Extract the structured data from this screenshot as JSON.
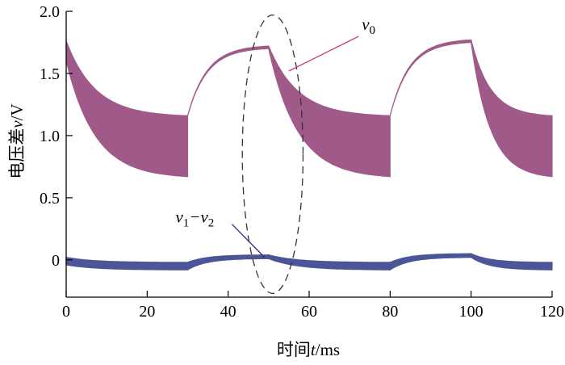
{
  "chart_data": {
    "type": "line",
    "xlabel_parts": [
      "时间",
      "t",
      "/ms"
    ],
    "ylabel_parts": [
      "电压差",
      "v",
      "/V"
    ],
    "xlim": [
      0,
      120
    ],
    "ylim": [
      -0.3,
      2.0
    ],
    "xticks": [
      0,
      20,
      40,
      60,
      80,
      100,
      120
    ],
    "xtick_labels": [
      "0",
      "20",
      "40",
      "60",
      "80",
      "100",
      "120"
    ],
    "yticks": [
      0,
      0.5,
      1.0,
      1.5,
      2.0
    ],
    "ytick_labels": [
      "0",
      "0.5",
      "1.0",
      "1.5",
      "2.0"
    ],
    "grid": false,
    "series": [
      {
        "name": "v0",
        "color": "#a05a89",
        "envelope_segments": [
          {
            "x": [
              0,
              30
            ],
            "upper": [
              1.76,
              1.16
            ],
            "lower": [
              1.6,
              0.67
            ]
          },
          {
            "x": [
              30,
              50
            ],
            "upper": [
              1.16,
              1.72
            ],
            "lower": [
              1.16,
              1.7
            ]
          },
          {
            "x": [
              50,
              80
            ],
            "upper": [
              1.72,
              1.16
            ],
            "lower": [
              1.7,
              0.67
            ]
          },
          {
            "x": [
              80,
              100
            ],
            "upper": [
              1.16,
              1.77
            ],
            "lower": [
              1.16,
              1.75
            ]
          },
          {
            "x": [
              100,
              120
            ],
            "upper": [
              1.77,
              1.16
            ],
            "lower": [
              1.75,
              0.67
            ]
          }
        ]
      },
      {
        "name": "v1−v2",
        "color": "#4b5597",
        "envelope_segments": [
          {
            "x": [
              0,
              30
            ],
            "upper": [
              0.02,
              -0.02
            ],
            "lower": [
              -0.04,
              -0.08
            ]
          },
          {
            "x": [
              30,
              50
            ],
            "upper": [
              -0.02,
              0.04
            ],
            "lower": [
              -0.08,
              0.01
            ]
          },
          {
            "x": [
              50,
              80
            ],
            "upper": [
              0.04,
              -0.02
            ],
            "lower": [
              0.01,
              -0.08
            ]
          },
          {
            "x": [
              80,
              100
            ],
            "upper": [
              -0.02,
              0.05
            ],
            "lower": [
              -0.08,
              0.02
            ]
          },
          {
            "x": [
              100,
              120
            ],
            "upper": [
              0.05,
              -0.02
            ],
            "lower": [
              0.02,
              -0.08
            ]
          }
        ]
      }
    ],
    "annotations": [
      {
        "label_main": "v",
        "label_sub": "0",
        "text_at": [
          73,
          1.85
        ],
        "arrow_to": [
          55,
          1.52
        ],
        "color": "#c4347a"
      },
      {
        "label_main": "v",
        "label_sub1": "1",
        "dash": "−",
        "label_main2": "v",
        "label_sub2": "2",
        "text_at": [
          27,
          0.3
        ],
        "arrow_to": [
          49,
          0.02
        ],
        "color": "#2c2f7a"
      }
    ],
    "highlight_ellipse": {
      "cx": 51,
      "cy": 0.85,
      "rx": 7.5,
      "ry": 1.12,
      "style": "dashed"
    }
  }
}
